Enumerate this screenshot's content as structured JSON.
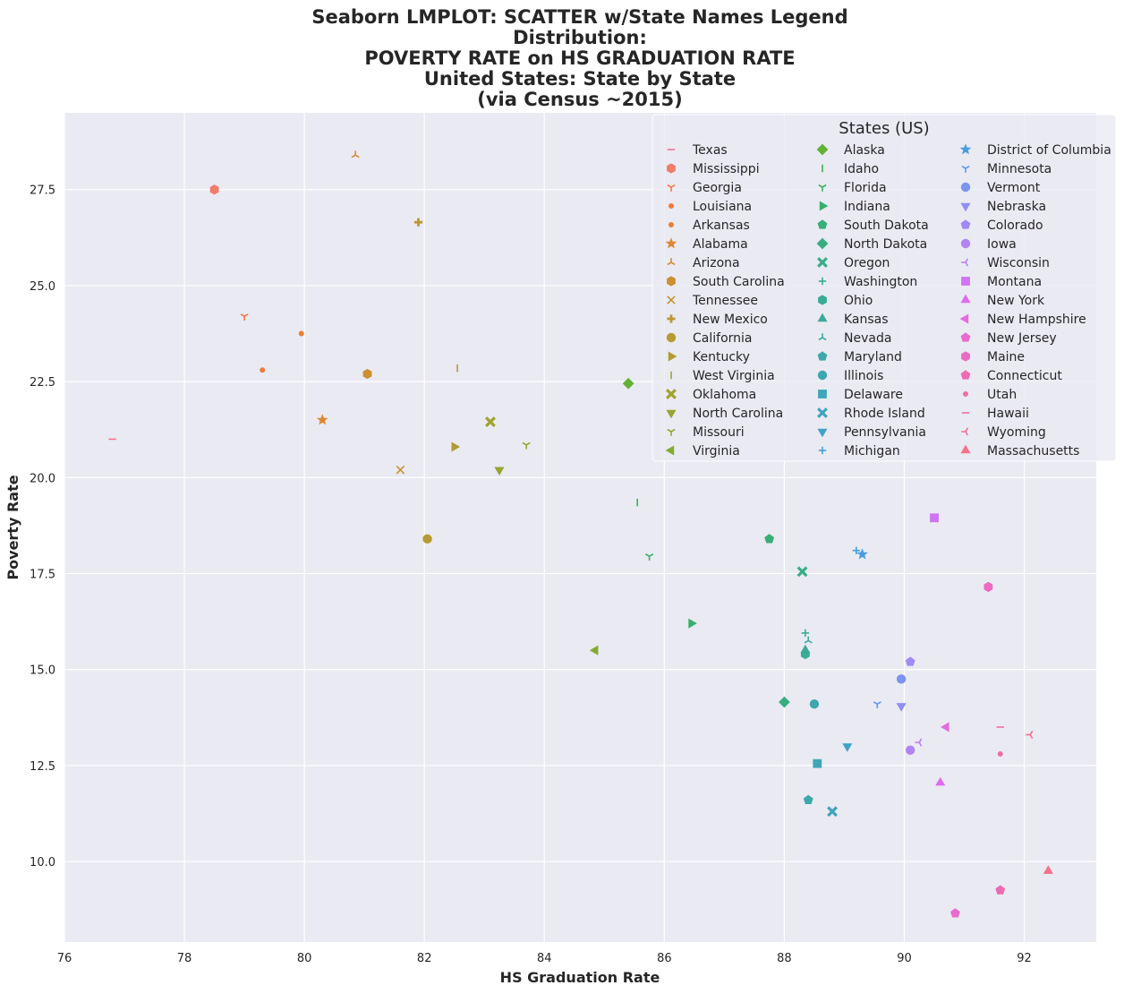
{
  "chart_data": {
    "type": "scatter",
    "title": [
      "Seaborn LMPLOT: SCATTER w/State Names Legend",
      "Distribution:",
      "POVERTY RATE on HS GRADUATION RATE",
      "United States: State by State",
      "(via Census ~2015)"
    ],
    "xlabel": "HS Graduation Rate",
    "ylabel": "Poverty Rate",
    "xlim": [
      76,
      93.2
    ],
    "ylim": [
      7.9,
      29.5
    ],
    "xticks": [
      "76",
      "78",
      "80",
      "82",
      "84",
      "86",
      "88",
      "90",
      "92"
    ],
    "yticks": [
      "10.0",
      "12.5",
      "15.0",
      "17.5",
      "20.0",
      "22.5",
      "25.0",
      "27.5"
    ],
    "grid": true,
    "legend": {
      "title": "States (US)",
      "placement": "top-right",
      "columns": 3
    },
    "series": [
      {
        "name": "Texas",
        "x": 76.8,
        "y": 21.0,
        "marker": "hline",
        "color": "#f77189"
      },
      {
        "name": "Mississippi",
        "x": 78.5,
        "y": 27.5,
        "marker": "hexagon",
        "color": "#f37b6a"
      },
      {
        "name": "Georgia",
        "x": 79.0,
        "y": 24.2,
        "marker": "tri_down",
        "color": "#f3764f"
      },
      {
        "name": "Louisiana",
        "x": 79.3,
        "y": 22.8,
        "marker": "point",
        "color": "#f07a3a"
      },
      {
        "name": "Arkansas",
        "x": 79.95,
        "y": 23.75,
        "marker": "point",
        "color": "#e8812f"
      },
      {
        "name": "Alabama",
        "x": 80.3,
        "y": 21.5,
        "marker": "star",
        "color": "#dd8732"
      },
      {
        "name": "Arizona",
        "x": 80.85,
        "y": 28.4,
        "marker": "tri_up",
        "color": "#d58b32"
      },
      {
        "name": "South Carolina",
        "x": 81.05,
        "y": 22.7,
        "marker": "hexagon",
        "color": "#cc8f32"
      },
      {
        "name": "Tennessee",
        "x": 81.6,
        "y": 20.2,
        "marker": "x",
        "color": "#c59232"
      },
      {
        "name": "New Mexico",
        "x": 81.9,
        "y": 26.65,
        "marker": "plus",
        "color": "#be9632"
      },
      {
        "name": "California",
        "x": 82.05,
        "y": 18.4,
        "marker": "circle",
        "color": "#b79a32"
      },
      {
        "name": "Kentucky",
        "x": 82.5,
        "y": 20.8,
        "marker": "triangle_right",
        "color": "#b19c31"
      },
      {
        "name": "West Virginia",
        "x": 82.55,
        "y": 22.85,
        "marker": "vline",
        "color": "#a99f31"
      },
      {
        "name": "Oklahoma",
        "x": 83.1,
        "y": 21.45,
        "marker": "x_filled",
        "color": "#a0a231"
      },
      {
        "name": "North Carolina",
        "x": 83.25,
        "y": 20.2,
        "marker": "triangle_down",
        "color": "#97a531"
      },
      {
        "name": "Missouri",
        "x": 83.7,
        "y": 20.85,
        "marker": "tri_down",
        "color": "#8ea831"
      },
      {
        "name": "Virginia",
        "x": 84.85,
        "y": 15.5,
        "marker": "triangle_left",
        "color": "#81ab31"
      },
      {
        "name": "Alaska",
        "x": 85.4,
        "y": 22.45,
        "marker": "diamond",
        "color": "#62b236"
      },
      {
        "name": "Idaho",
        "x": 85.55,
        "y": 19.35,
        "marker": "vline",
        "color": "#34b44f"
      },
      {
        "name": "Florida",
        "x": 85.75,
        "y": 17.95,
        "marker": "tri_down",
        "color": "#35b262"
      },
      {
        "name": "Indiana",
        "x": 86.45,
        "y": 16.2,
        "marker": "triangle_right",
        "color": "#36b06d"
      },
      {
        "name": "South Dakota",
        "x": 87.75,
        "y": 18.4,
        "marker": "pentagon",
        "color": "#37af77"
      },
      {
        "name": "North Dakota",
        "x": 88.0,
        "y": 14.15,
        "marker": "diamond",
        "color": "#38ae7f"
      },
      {
        "name": "Oregon",
        "x": 88.3,
        "y": 17.55,
        "marker": "x_filled",
        "color": "#39ad87"
      },
      {
        "name": "Washington",
        "x": 88.35,
        "y": 15.95,
        "marker": "plus_thin",
        "color": "#39ac8e"
      },
      {
        "name": "Ohio",
        "x": 88.35,
        "y": 15.4,
        "marker": "hexagon",
        "color": "#3aab95"
      },
      {
        "name": "Kansas",
        "x": 88.35,
        "y": 15.5,
        "marker": "triangle_up",
        "color": "#3aaa9c"
      },
      {
        "name": "Nevada",
        "x": 88.4,
        "y": 15.75,
        "marker": "tri_up",
        "color": "#3ba9a3"
      },
      {
        "name": "Maryland",
        "x": 88.4,
        "y": 11.6,
        "marker": "pentagon",
        "color": "#3ca8a9"
      },
      {
        "name": "Illinois",
        "x": 88.5,
        "y": 14.1,
        "marker": "circle",
        "color": "#3da7b0"
      },
      {
        "name": "Delaware",
        "x": 88.55,
        "y": 12.55,
        "marker": "square",
        "color": "#3ea6b7"
      },
      {
        "name": "Rhode Island",
        "x": 88.8,
        "y": 11.3,
        "marker": "x_filled",
        "color": "#3fa4bf"
      },
      {
        "name": "Pennsylvania",
        "x": 89.05,
        "y": 13.0,
        "marker": "triangle_down",
        "color": "#41a2c8"
      },
      {
        "name": "Michigan",
        "x": 89.2,
        "y": 18.1,
        "marker": "plus_thin",
        "color": "#43a0d3"
      },
      {
        "name": "District of Columbia",
        "x": 89.3,
        "y": 18.0,
        "marker": "star",
        "color": "#479de0"
      },
      {
        "name": "Minnesota",
        "x": 89.55,
        "y": 14.1,
        "marker": "tri_down",
        "color": "#5d98ee"
      },
      {
        "name": "Vermont",
        "x": 89.95,
        "y": 14.75,
        "marker": "circle",
        "color": "#7b93f3"
      },
      {
        "name": "Nebraska",
        "x": 89.95,
        "y": 14.05,
        "marker": "triangle_down",
        "color": "#8f8ef4"
      },
      {
        "name": "Colorado",
        "x": 90.1,
        "y": 15.2,
        "marker": "pentagon",
        "color": "#a189f4"
      },
      {
        "name": "Iowa",
        "x": 90.1,
        "y": 12.9,
        "marker": "circle",
        "color": "#b183f4"
      },
      {
        "name": "Wisconsin",
        "x": 90.25,
        "y": 13.1,
        "marker": "tri_left",
        "color": "#c07cf4"
      },
      {
        "name": "Montana",
        "x": 90.5,
        "y": 18.95,
        "marker": "square",
        "color": "#cf74f4"
      },
      {
        "name": "New York",
        "x": 90.6,
        "y": 12.05,
        "marker": "triangle_up",
        "color": "#de6cf0"
      },
      {
        "name": "New Hampshire",
        "x": 90.7,
        "y": 13.5,
        "marker": "triangle_left",
        "color": "#e56bdf"
      },
      {
        "name": "New Jersey",
        "x": 90.85,
        "y": 8.65,
        "marker": "pentagon",
        "color": "#e96acf"
      },
      {
        "name": "Maine",
        "x": 91.4,
        "y": 17.15,
        "marker": "hexagon",
        "color": "#ec6ac0"
      },
      {
        "name": "Connecticut",
        "x": 91.6,
        "y": 9.25,
        "marker": "pentagon",
        "color": "#ee6ab2"
      },
      {
        "name": "Utah",
        "x": 91.6,
        "y": 12.8,
        "marker": "point",
        "color": "#f06ca4"
      },
      {
        "name": "Hawaii",
        "x": 91.6,
        "y": 13.5,
        "marker": "hline",
        "color": "#f26d97"
      },
      {
        "name": "Wyoming",
        "x": 92.1,
        "y": 13.3,
        "marker": "tri_left",
        "color": "#f46f8b"
      },
      {
        "name": "Massachusetts",
        "x": 92.4,
        "y": 9.75,
        "marker": "triangle_up",
        "color": "#f5718b"
      }
    ]
  }
}
